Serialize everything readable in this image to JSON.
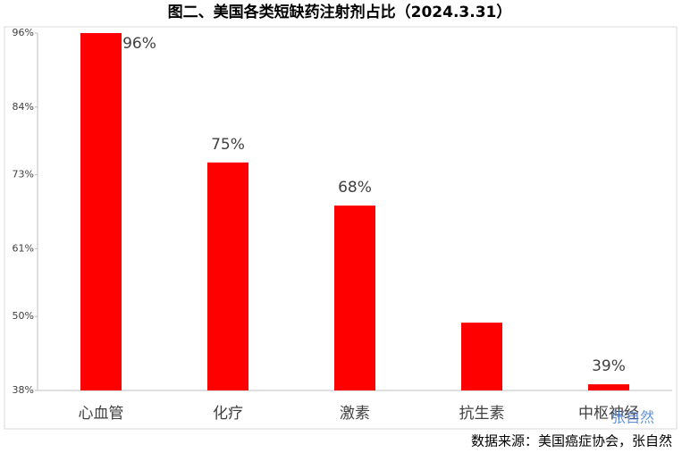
{
  "chart_data": {
    "type": "bar",
    "title": "图二、美国各类短缺药注射剂占比（2024.3.31）",
    "categories": [
      "心血管",
      "化疗",
      "激素",
      "抗生素",
      "中枢神经"
    ],
    "values": [
      96,
      75,
      68,
      49,
      39
    ],
    "value_labels": [
      "96%",
      "75%",
      "68%",
      null,
      "39%"
    ],
    "color": "#ff0000",
    "ylim": [
      38,
      96
    ],
    "yticks": [
      {
        "value": 38,
        "label": "38%"
      },
      {
        "value": 50,
        "label": "50%"
      },
      {
        "value": 61,
        "label": "61%"
      },
      {
        "value": 73,
        "label": "73%"
      },
      {
        "value": 84,
        "label": "84%"
      },
      {
        "value": 96,
        "label": "96%"
      }
    ],
    "grid": false,
    "source": "数据来源：美国癌症协会，张自然",
    "watermark": "张自然"
  }
}
